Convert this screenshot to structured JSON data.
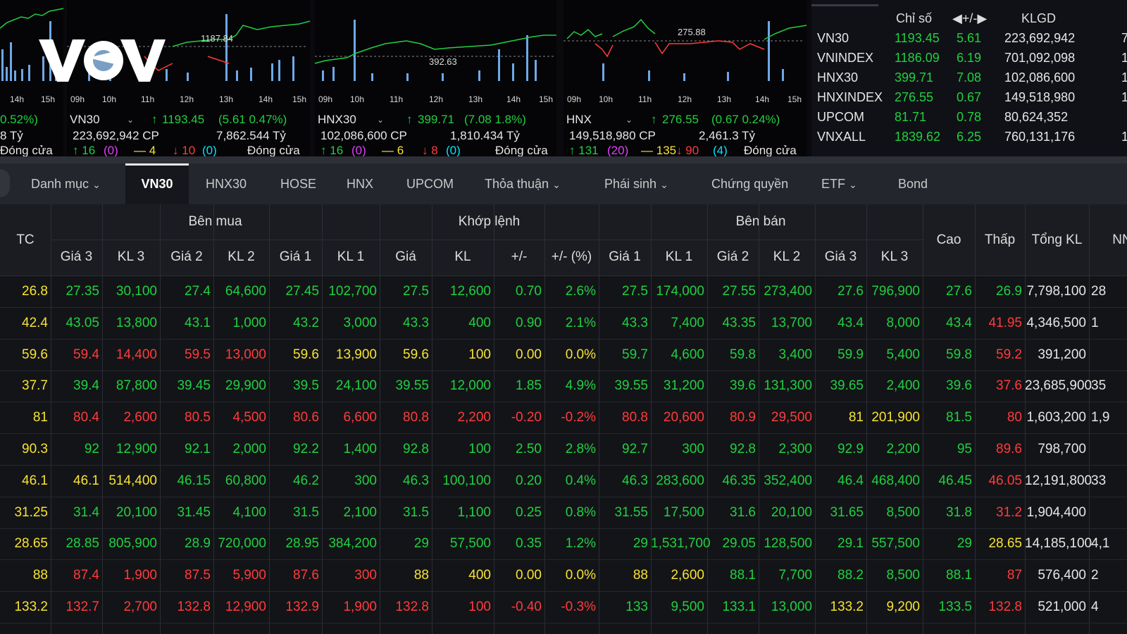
{
  "colors": {
    "up": "#20d040",
    "down": "#ff3b3b",
    "ref": "#f6e332",
    "ceil": "#e040fb",
    "floor": "#00e5ff"
  },
  "charts": [
    {
      "ticks": [
        "14h",
        "15h"
      ],
      "info": {
        "change": "0.52%)",
        "value": "8 Tỷ",
        "status": "Đóng cửa"
      }
    },
    {
      "ticks": [
        "09h",
        "10h",
        "11h",
        "12h",
        "13h",
        "14h",
        "15h"
      ],
      "ref_label": "1187.84",
      "name": "VN30",
      "info": {
        "index": "1193.45",
        "change": "(5.61  0.47%)",
        "volume": "223,692,942 CP",
        "value": "7,862.544 Tỷ",
        "up": "16",
        "ceil": "(0)",
        "ref": "4",
        "down": "10",
        "floor": "(0)",
        "status": "Đóng cửa"
      }
    },
    {
      "ticks": [
        "09h",
        "10h",
        "11h",
        "12h",
        "13h",
        "14h",
        "15h"
      ],
      "ref_label": "392.63",
      "name": "HNX30",
      "info": {
        "index": "399.71",
        "change": "(7.08  1.8%)",
        "volume": "102,086,600 CP",
        "value": "1,810.434 Tỷ",
        "up": "16",
        "ceil": "(0)",
        "ref": "6",
        "down": "8",
        "floor": "(0)",
        "status": "Đóng cửa"
      }
    },
    {
      "ticks": [
        "09h",
        "10h",
        "11h",
        "12h",
        "13h",
        "14h",
        "15h"
      ],
      "ref_label": "275.88",
      "name": "HNX",
      "info": {
        "index": "276.55",
        "change": "(0.67  0.24%)",
        "volume": "149,518,980 CP",
        "value": "2,461.3 Tỷ",
        "up": "131",
        "ceil": "(20)",
        "ref": "135",
        "down": "90",
        "floor": "(4)",
        "status": "Đóng cửa"
      }
    }
  ],
  "index_table": {
    "headers": [
      "Chỉ số",
      "+/-",
      "KLGD"
    ],
    "rows": [
      {
        "name": "VN30",
        "value": "1193.45",
        "change": "5.61",
        "volume": "223,692,942",
        "extra": "7"
      },
      {
        "name": "VNINDEX",
        "value": "1186.09",
        "change": "6.19",
        "volume": "701,092,098",
        "extra": "1"
      },
      {
        "name": "HNX30",
        "value": "399.71",
        "change": "7.08",
        "volume": "102,086,600",
        "extra": "1"
      },
      {
        "name": "HNXINDEX",
        "value": "276.55",
        "change": "0.67",
        "volume": "149,518,980",
        "extra": "1"
      },
      {
        "name": "UPCOM",
        "value": "81.71",
        "change": "0.78",
        "volume": "80,624,352",
        "extra": ""
      },
      {
        "name": "VNXALL",
        "value": "1839.62",
        "change": "6.25",
        "volume": "760,131,176",
        "extra": "1"
      }
    ]
  },
  "tabs": [
    {
      "label": "Danh mục",
      "dropdown": true
    },
    {
      "label": "VN30",
      "active": true
    },
    {
      "label": "HNX30"
    },
    {
      "label": "HOSE"
    },
    {
      "label": "HNX"
    },
    {
      "label": "UPCOM"
    },
    {
      "label": "Thỏa thuận",
      "dropdown": true
    },
    {
      "label": "Phái sinh",
      "dropdown": true
    },
    {
      "label": "Chứng quyền"
    },
    {
      "label": "ETF",
      "dropdown": true
    },
    {
      "label": "Bond"
    }
  ],
  "grid": {
    "groups": {
      "buy": "Bên mua",
      "match": "Khớp lệnh",
      "sell": "Bên bán"
    },
    "columns": [
      "TC",
      "Giá 3",
      "KL 3",
      "Giá 2",
      "KL 2",
      "Giá 1",
      "KL 1",
      "Giá",
      "KL",
      "+/-",
      "+/- (%)",
      "Giá 1",
      "KL 1",
      "Giá 2",
      "KL 2",
      "Giá 3",
      "KL 3",
      "Cao",
      "Thấp",
      "Tổng KL",
      "NN"
    ],
    "rows": [
      [
        "26.8",
        "27.35",
        "30,100",
        "27.4",
        "64,600",
        "27.45",
        "102,700",
        "27.5",
        "12,600",
        "0.70",
        "2.6%",
        "27.5",
        "174,000",
        "27.55",
        "273,400",
        "27.6",
        "796,900",
        "27.6",
        "26.9",
        "7,798,100",
        "28"
      ],
      [
        "42.4",
        "43.05",
        "13,800",
        "43.1",
        "1,000",
        "43.2",
        "3,000",
        "43.3",
        "400",
        "0.90",
        "2.1%",
        "43.3",
        "7,400",
        "43.35",
        "13,700",
        "43.4",
        "8,000",
        "43.4",
        "41.95",
        "4,346,500",
        "1"
      ],
      [
        "59.6",
        "59.4",
        "14,400",
        "59.5",
        "13,000",
        "59.6",
        "13,900",
        "59.6",
        "100",
        "0.00",
        "0.0%",
        "59.7",
        "4,600",
        "59.8",
        "3,400",
        "59.9",
        "5,400",
        "59.8",
        "59.2",
        "391,200",
        ""
      ],
      [
        "37.7",
        "39.4",
        "87,800",
        "39.45",
        "29,900",
        "39.5",
        "24,100",
        "39.55",
        "12,000",
        "1.85",
        "4.9%",
        "39.55",
        "31,200",
        "39.6",
        "131,300",
        "39.65",
        "2,400",
        "39.6",
        "37.6",
        "23,685,900",
        "35"
      ],
      [
        "81",
        "80.4",
        "2,600",
        "80.5",
        "4,500",
        "80.6",
        "6,600",
        "80.8",
        "2,200",
        "-0.20",
        "-0.2%",
        "80.8",
        "20,600",
        "80.9",
        "29,500",
        "81",
        "201,900",
        "81.5",
        "80",
        "1,603,200",
        "1,9"
      ],
      [
        "90.3",
        "92",
        "12,900",
        "92.1",
        "2,000",
        "92.2",
        "1,400",
        "92.8",
        "100",
        "2.50",
        "2.8%",
        "92.7",
        "300",
        "92.8",
        "2,300",
        "92.9",
        "2,200",
        "95",
        "89.6",
        "798,700",
        ""
      ],
      [
        "46.1",
        "46.1",
        "514,400",
        "46.15",
        "60,800",
        "46.2",
        "300",
        "46.3",
        "100,100",
        "0.20",
        "0.4%",
        "46.3",
        "283,600",
        "46.35",
        "352,400",
        "46.4",
        "468,400",
        "46.45",
        "46.05",
        "12,191,800",
        "33"
      ],
      [
        "31.25",
        "31.4",
        "20,100",
        "31.45",
        "4,100",
        "31.5",
        "2,100",
        "31.5",
        "1,100",
        "0.25",
        "0.8%",
        "31.55",
        "17,500",
        "31.6",
        "20,100",
        "31.65",
        "8,500",
        "31.8",
        "31.2",
        "1,904,400",
        ""
      ],
      [
        "28.65",
        "28.85",
        "805,900",
        "28.9",
        "720,000",
        "28.95",
        "384,200",
        "29",
        "57,500",
        "0.35",
        "1.2%",
        "29",
        "1,531,700",
        "29.05",
        "128,500",
        "29.1",
        "557,500",
        "29",
        "28.65",
        "14,185,100",
        "4,1"
      ],
      [
        "88",
        "87.4",
        "1,900",
        "87.5",
        "5,900",
        "87.6",
        "300",
        "88",
        "400",
        "0.00",
        "0.0%",
        "88",
        "2,600",
        "88.1",
        "7,700",
        "88.2",
        "8,500",
        "88.1",
        "87",
        "576,400",
        "2"
      ],
      [
        "133.2",
        "132.7",
        "2,700",
        "132.8",
        "12,900",
        "132.9",
        "1,900",
        "132.8",
        "100",
        "-0.40",
        "-0.3%",
        "133",
        "9,500",
        "133.1",
        "13,000",
        "133.2",
        "9,200",
        "133.5",
        "132.8",
        "521,000",
        "4"
      ]
    ],
    "row_colors": [
      [
        "y",
        "g",
        "g",
        "g",
        "g",
        "g",
        "g",
        "g",
        "g",
        "g",
        "g",
        "g",
        "g",
        "g",
        "g",
        "g",
        "g",
        "g",
        "g",
        "w",
        "w"
      ],
      [
        "y",
        "g",
        "g",
        "g",
        "g",
        "g",
        "g",
        "g",
        "g",
        "g",
        "g",
        "g",
        "g",
        "g",
        "g",
        "g",
        "g",
        "g",
        "r",
        "w",
        "w"
      ],
      [
        "y",
        "r",
        "r",
        "r",
        "r",
        "y",
        "y",
        "y",
        "y",
        "y",
        "y",
        "g",
        "g",
        "g",
        "g",
        "g",
        "g",
        "g",
        "r",
        "w",
        "w"
      ],
      [
        "y",
        "g",
        "g",
        "g",
        "g",
        "g",
        "g",
        "g",
        "g",
        "g",
        "g",
        "g",
        "g",
        "g",
        "g",
        "g",
        "g",
        "g",
        "r",
        "w",
        "w"
      ],
      [
        "y",
        "r",
        "r",
        "r",
        "r",
        "r",
        "r",
        "r",
        "r",
        "r",
        "r",
        "r",
        "r",
        "r",
        "r",
        "y",
        "y",
        "g",
        "r",
        "w",
        "w"
      ],
      [
        "y",
        "g",
        "g",
        "g",
        "g",
        "g",
        "g",
        "g",
        "g",
        "g",
        "g",
        "g",
        "g",
        "g",
        "g",
        "g",
        "g",
        "g",
        "r",
        "w",
        "w"
      ],
      [
        "y",
        "y",
        "y",
        "g",
        "g",
        "g",
        "g",
        "g",
        "g",
        "g",
        "g",
        "g",
        "g",
        "g",
        "g",
        "g",
        "g",
        "g",
        "r",
        "w",
        "w"
      ],
      [
        "y",
        "g",
        "g",
        "g",
        "g",
        "g",
        "g",
        "g",
        "g",
        "g",
        "g",
        "g",
        "g",
        "g",
        "g",
        "g",
        "g",
        "g",
        "r",
        "w",
        "w"
      ],
      [
        "y",
        "g",
        "g",
        "g",
        "g",
        "g",
        "g",
        "g",
        "g",
        "g",
        "g",
        "g",
        "g",
        "g",
        "g",
        "g",
        "g",
        "g",
        "y",
        "w",
        "w"
      ],
      [
        "y",
        "r",
        "r",
        "r",
        "r",
        "r",
        "r",
        "y",
        "y",
        "y",
        "y",
        "y",
        "y",
        "g",
        "g",
        "g",
        "g",
        "g",
        "r",
        "w",
        "w"
      ],
      [
        "y",
        "r",
        "r",
        "r",
        "r",
        "r",
        "r",
        "r",
        "r",
        "r",
        "r",
        "g",
        "g",
        "g",
        "g",
        "y",
        "y",
        "g",
        "r",
        "w",
        "w"
      ]
    ]
  }
}
